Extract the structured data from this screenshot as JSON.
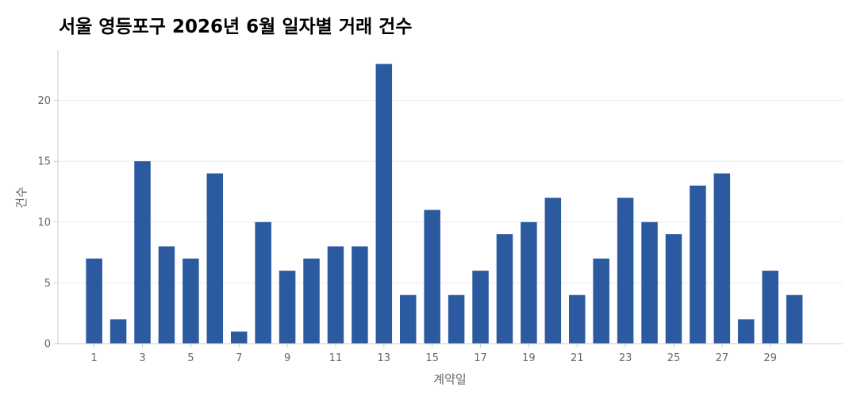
{
  "chart_data": {
    "type": "bar",
    "title": "서울 영등포구 2026년 6월 일자별 거래 건수",
    "xlabel": "계약일",
    "ylabel": "건수",
    "categories": [
      1,
      2,
      3,
      4,
      5,
      6,
      7,
      8,
      9,
      10,
      11,
      12,
      13,
      14,
      15,
      16,
      17,
      18,
      19,
      20,
      21,
      22,
      23,
      24,
      25,
      26,
      27,
      28,
      29,
      30
    ],
    "values": [
      7,
      2,
      15,
      8,
      7,
      14,
      1,
      10,
      6,
      7,
      8,
      8,
      23,
      4,
      11,
      4,
      6,
      9,
      10,
      12,
      4,
      7,
      12,
      10,
      9,
      13,
      14,
      2,
      6,
      4
    ],
    "x_tick_labels": [
      "1",
      "3",
      "5",
      "7",
      "9",
      "11",
      "13",
      "15",
      "17",
      "19",
      "21",
      "23",
      "25",
      "27",
      "29"
    ],
    "y_ticks": [
      0,
      5,
      10,
      15,
      20
    ],
    "ylim": [
      0,
      24.15
    ],
    "xlim": [
      -0.5,
      32.0
    ],
    "grid": "horizontal",
    "bar_color": "#2C5AA0"
  }
}
